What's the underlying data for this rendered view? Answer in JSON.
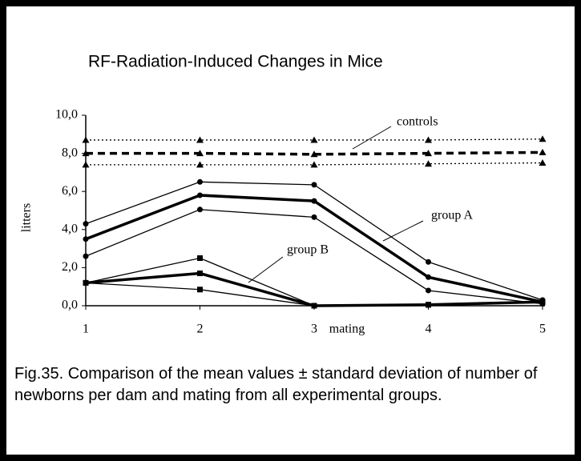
{
  "chart_data": {
    "type": "line",
    "title": "RF-Radiation-Induced Changes in Mice",
    "ylabel": "litters",
    "xlabel": "mating",
    "caption": "Fig.35. Comparison of the mean values ± standard deviation of number of newborns per dam and mating from all experimental groups.",
    "x": [
      1,
      2,
      3,
      4,
      5
    ],
    "xlim": [
      1,
      5
    ],
    "xticks": [
      1,
      2,
      3,
      4,
      5
    ],
    "ylim": [
      0,
      10
    ],
    "yticks": [
      {
        "value": 0,
        "label": "0,0"
      },
      {
        "value": 2,
        "label": "2,0"
      },
      {
        "value": 4,
        "label": "4,0"
      },
      {
        "value": 6,
        "label": "6,0"
      },
      {
        "value": 8,
        "label": "8,0"
      },
      {
        "value": 10,
        "label": "10,0"
      }
    ],
    "series": [
      {
        "name": "controls",
        "color": "#000000",
        "marker": "triangle",
        "mean_style": "dashed",
        "bound_style": "dotted",
        "values": [
          8.0,
          8.0,
          7.95,
          8.0,
          8.05
        ],
        "upper": [
          8.7,
          8.7,
          8.7,
          8.7,
          8.75
        ],
        "lower": [
          7.4,
          7.4,
          7.4,
          7.45,
          7.5
        ]
      },
      {
        "name": "group A",
        "color": "#000000",
        "marker": "circle",
        "mean_style": "solid",
        "bound_style": "solid",
        "values": [
          3.5,
          5.8,
          5.5,
          1.5,
          0.2
        ],
        "upper": [
          4.3,
          6.5,
          6.35,
          2.3,
          0.3
        ],
        "lower": [
          2.6,
          5.05,
          4.65,
          0.8,
          0.1
        ]
      },
      {
        "name": "group B",
        "color": "#000000",
        "marker": "square",
        "mean_style": "solid",
        "bound_style": "solid",
        "values": [
          1.2,
          1.7,
          0.0,
          0.05,
          0.2
        ],
        "upper": [
          1.2,
          2.5,
          0.0,
          0.05,
          0.2
        ],
        "lower": [
          1.2,
          0.85,
          0.0,
          0.05,
          0.2
        ]
      }
    ]
  }
}
